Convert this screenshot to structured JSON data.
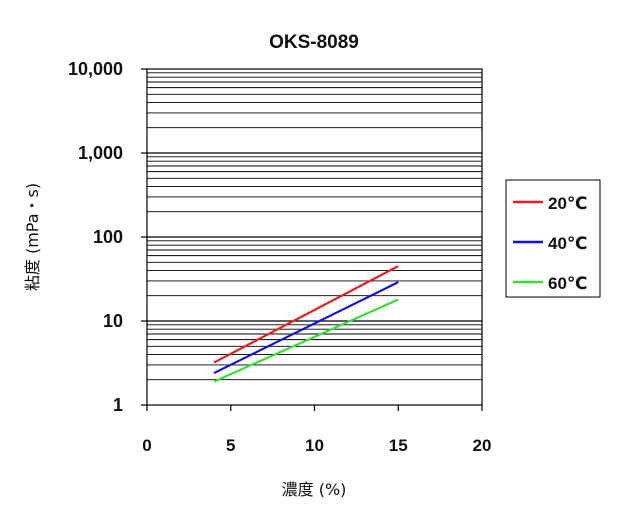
{
  "chart_data": {
    "type": "line",
    "title": "OKS-8089",
    "xlabel": "濃度 (%)",
    "ylabel": "粘度 (mPa・s)",
    "xlim": [
      0,
      20
    ],
    "xticks": [
      0,
      5,
      10,
      15,
      20
    ],
    "xtick_labels": [
      "0",
      "5",
      "10",
      "15",
      "20"
    ],
    "ylim": [
      1,
      10000
    ],
    "yscale": "log",
    "yticks": [
      1,
      10,
      100,
      1000,
      10000
    ],
    "ytick_labels": [
      "1",
      "10",
      "100",
      "1,000",
      "10,000"
    ],
    "grid": "horizontal minor log lines",
    "legend_position": "right",
    "series": [
      {
        "name": "20℃",
        "color": "#e8201c",
        "x": [
          4,
          15
        ],
        "y": [
          3.2,
          45
        ]
      },
      {
        "name": "40℃",
        "color": "#1010e0",
        "x": [
          4,
          15
        ],
        "y": [
          2.4,
          29
        ]
      },
      {
        "name": "60℃",
        "color": "#33e033",
        "x": [
          4,
          15
        ],
        "y": [
          1.9,
          18
        ]
      }
    ]
  }
}
